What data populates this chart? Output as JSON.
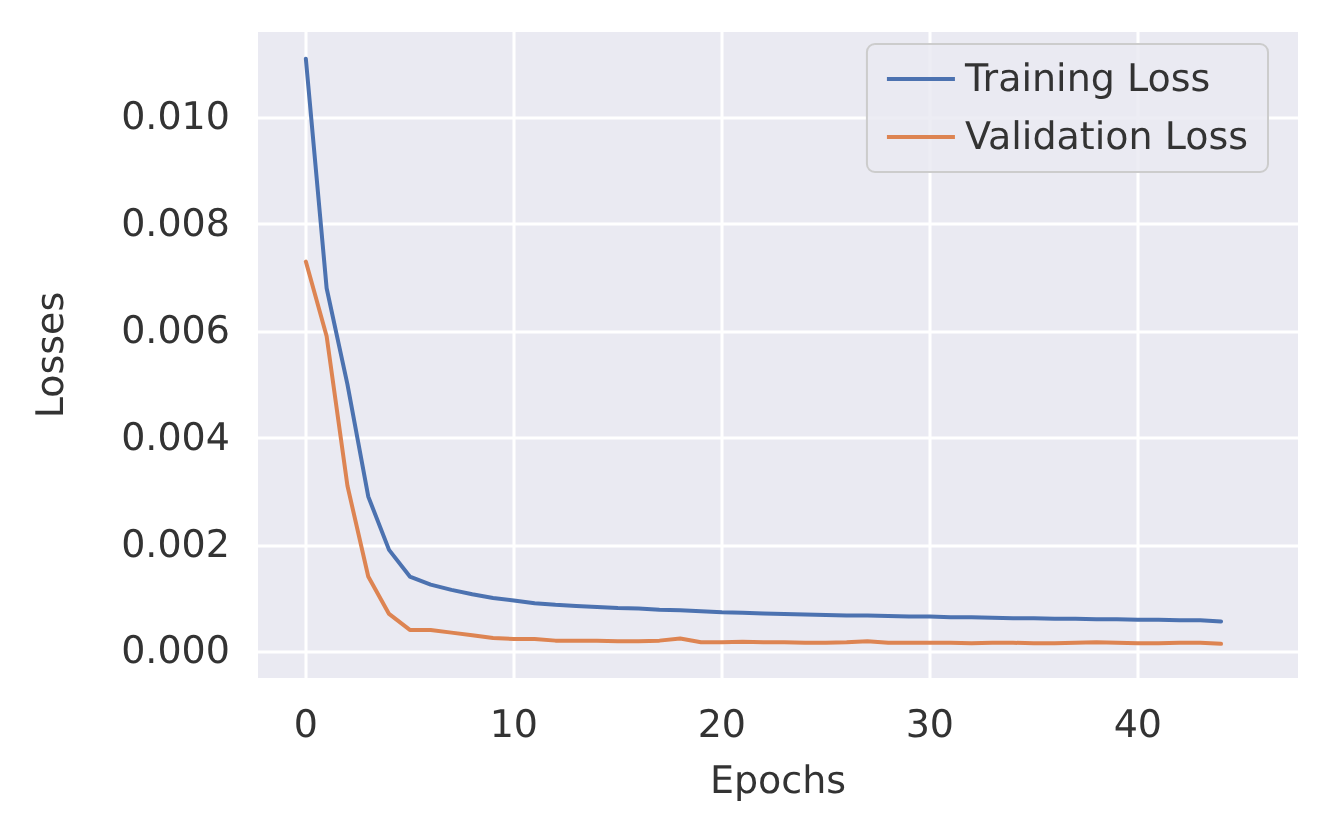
{
  "chart_data": {
    "type": "line",
    "xlabel": "Epochs",
    "ylabel": "Losses",
    "x": [
      0,
      1,
      2,
      3,
      4,
      5,
      6,
      7,
      8,
      9,
      10,
      11,
      12,
      13,
      14,
      15,
      16,
      17,
      18,
      19,
      20,
      21,
      22,
      23,
      24,
      25,
      26,
      27,
      28,
      29,
      30,
      31,
      32,
      33,
      34,
      35,
      36,
      37,
      38,
      39,
      40,
      41,
      42,
      43,
      44
    ],
    "series": [
      {
        "name": "Training Loss",
        "color": "#4c72b0",
        "values": [
          0.0111,
          0.0068,
          0.005,
          0.0029,
          0.0019,
          0.0014,
          0.00125,
          0.00115,
          0.00107,
          0.001,
          0.00095,
          0.0009,
          0.00087,
          0.00085,
          0.00083,
          0.00081,
          0.0008,
          0.00078,
          0.00077,
          0.00075,
          0.00073,
          0.00072,
          0.00071,
          0.0007,
          0.00069,
          0.00068,
          0.00067,
          0.00067,
          0.00066,
          0.00065,
          0.00065,
          0.00064,
          0.00064,
          0.00063,
          0.00062,
          0.00062,
          0.00061,
          0.00061,
          0.0006,
          0.0006,
          0.00059,
          0.00059,
          0.00058,
          0.00058,
          0.00056
        ]
      },
      {
        "name": "Validation Loss",
        "color": "#dd8452",
        "values": [
          0.0073,
          0.0059,
          0.0031,
          0.0014,
          0.0007,
          0.0004,
          0.0004,
          0.00035,
          0.0003,
          0.00025,
          0.00023,
          0.00023,
          0.0002,
          0.0002,
          0.0002,
          0.00019,
          0.00019,
          0.0002,
          0.00024,
          0.00017,
          0.00017,
          0.00018,
          0.00017,
          0.00017,
          0.00016,
          0.00016,
          0.00017,
          0.00019,
          0.00016,
          0.00016,
          0.00016,
          0.00016,
          0.00015,
          0.00016,
          0.00016,
          0.00015,
          0.00015,
          0.00016,
          0.00017,
          0.00016,
          0.00015,
          0.00015,
          0.00016,
          0.00016,
          0.00014
        ]
      }
    ],
    "xlim": [
      -2.3,
      47.7
    ],
    "ylim": [
      -0.0005,
      0.0116
    ],
    "xticks": [
      0,
      10,
      20,
      30,
      40
    ],
    "yticks": [
      {
        "value": 0,
        "label": "0.000"
      },
      {
        "value": 0.002,
        "label": "0.002"
      },
      {
        "value": 0.004,
        "label": "0.004"
      },
      {
        "value": 0.006,
        "label": "0.006"
      },
      {
        "value": 0.008,
        "label": "0.008"
      },
      {
        "value": 0.01,
        "label": "0.010"
      }
    ],
    "grid": true,
    "legend": "top right",
    "marker": "none",
    "line_style": "solid"
  }
}
